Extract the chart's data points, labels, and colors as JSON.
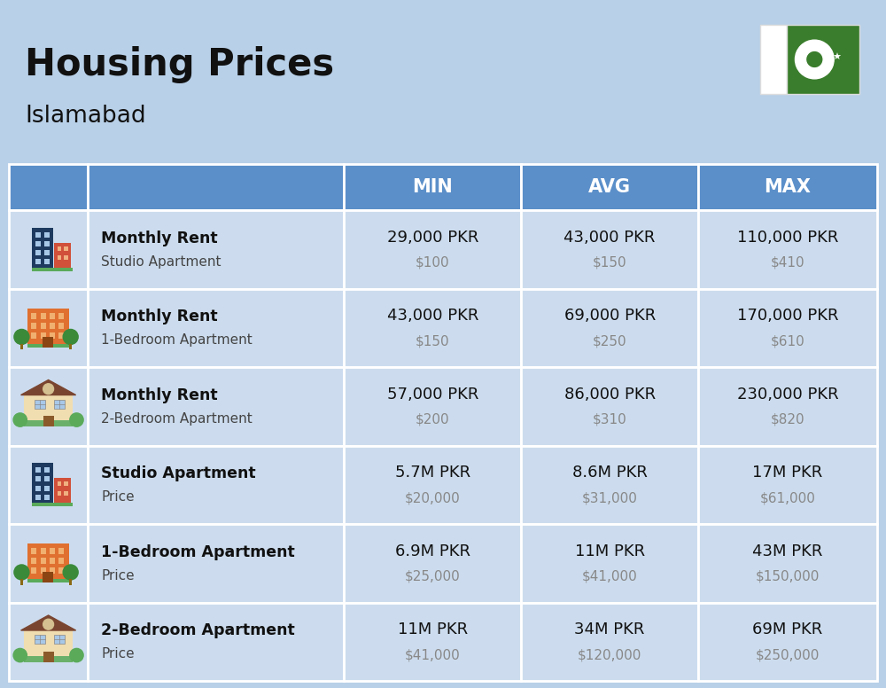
{
  "title": "Housing Prices",
  "subtitle": "Islamabad",
  "background_color": "#b8d0e8",
  "header_bg_color": "#5b8fc9",
  "header_text_color": "#ffffff",
  "row_bg_light": "#ccdcee",
  "cell_border_color": "#ffffff",
  "header_labels": [
    "MIN",
    "AVG",
    "MAX"
  ],
  "rows": [
    {
      "label_bold": "Monthly Rent",
      "label_normal": "Studio Apartment",
      "min_pkr": "29,000 PKR",
      "min_usd": "$100",
      "avg_pkr": "43,000 PKR",
      "avg_usd": "$150",
      "max_pkr": "110,000 PKR",
      "max_usd": "$410",
      "icon_type": "studio_apt"
    },
    {
      "label_bold": "Monthly Rent",
      "label_normal": "1-Bedroom Apartment",
      "min_pkr": "43,000 PKR",
      "min_usd": "$150",
      "avg_pkr": "69,000 PKR",
      "avg_usd": "$250",
      "max_pkr": "170,000 PKR",
      "max_usd": "$610",
      "icon_type": "one_bed"
    },
    {
      "label_bold": "Monthly Rent",
      "label_normal": "2-Bedroom Apartment",
      "min_pkr": "57,000 PKR",
      "min_usd": "$200",
      "avg_pkr": "86,000 PKR",
      "avg_usd": "$310",
      "max_pkr": "230,000 PKR",
      "max_usd": "$820",
      "icon_type": "two_bed"
    },
    {
      "label_bold": "Studio Apartment",
      "label_normal": "Price",
      "min_pkr": "5.7M PKR",
      "min_usd": "$20,000",
      "avg_pkr": "8.6M PKR",
      "avg_usd": "$31,000",
      "max_pkr": "17M PKR",
      "max_usd": "$61,000",
      "icon_type": "studio_apt"
    },
    {
      "label_bold": "1-Bedroom Apartment",
      "label_normal": "Price",
      "min_pkr": "6.9M PKR",
      "min_usd": "$25,000",
      "avg_pkr": "11M PKR",
      "avg_usd": "$41,000",
      "max_pkr": "43M PKR",
      "max_usd": "$150,000",
      "icon_type": "one_bed"
    },
    {
      "label_bold": "2-Bedroom Apartment",
      "label_normal": "Price",
      "min_pkr": "11M PKR",
      "min_usd": "$41,000",
      "avg_pkr": "34M PKR",
      "avg_usd": "$120,000",
      "max_pkr": "69M PKR",
      "max_usd": "$250,000",
      "icon_type": "two_bed"
    }
  ]
}
